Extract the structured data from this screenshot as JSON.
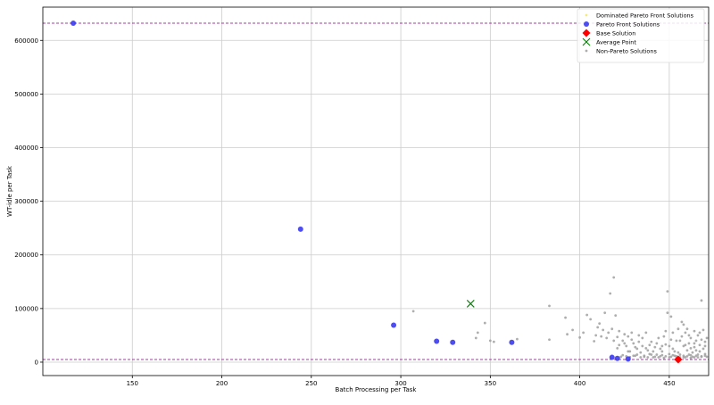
{
  "chart_data": {
    "type": "scatter",
    "title": "",
    "xlabel": "Batch Processing per Task",
    "ylabel": "WT-idle per Task",
    "xlim": [
      100,
      472
    ],
    "ylim": [
      -25000,
      662000
    ],
    "xticks": [
      150,
      200,
      250,
      300,
      350,
      400,
      450
    ],
    "yticks": [
      0,
      100000,
      200000,
      300000,
      400000,
      500000,
      600000
    ],
    "grid": true,
    "legend_position": "top-right",
    "hlines": [
      {
        "y": 632000,
        "color": "#800080",
        "style": "dashed"
      },
      {
        "y": 5000,
        "color": "#800080",
        "style": "dashed"
      }
    ],
    "series": [
      {
        "name": "Dominated Pareto Front Solutions",
        "marker": "dot",
        "color": "#f5e663",
        "points": []
      },
      {
        "name": "Pareto Front Solutions",
        "marker": "circle",
        "color": "#3a3af0",
        "points": [
          [
            117,
            632000
          ],
          [
            244,
            248000
          ],
          [
            296,
            69000
          ],
          [
            320,
            39000
          ],
          [
            329,
            37000
          ],
          [
            362,
            37000
          ],
          [
            418,
            9000
          ],
          [
            421,
            7000
          ],
          [
            427,
            6000
          ]
        ]
      },
      {
        "name": "Base Solution",
        "marker": "diamond",
        "color": "#ff0000",
        "points": [
          [
            455,
            5000
          ]
        ]
      },
      {
        "name": "Average Point",
        "marker": "x",
        "color": "#008000",
        "points": [
          [
            339,
            109000
          ]
        ]
      },
      {
        "name": "Non-Pareto Solutions",
        "marker": "dot",
        "color": "#a0a0a0",
        "points": [
          [
            307,
            95000
          ],
          [
            342,
            45000
          ],
          [
            343,
            55000
          ],
          [
            347,
            73000
          ],
          [
            350,
            40000
          ],
          [
            352,
            38000
          ],
          [
            365,
            43000
          ],
          [
            383,
            105000
          ],
          [
            383,
            42000
          ],
          [
            392,
            83000
          ],
          [
            393,
            52000
          ],
          [
            396,
            60000
          ],
          [
            400,
            46000
          ],
          [
            402,
            55000
          ],
          [
            404,
            88000
          ],
          [
            408,
            39000
          ],
          [
            410,
            65000
          ],
          [
            412,
            48000
          ],
          [
            414,
            92000
          ],
          [
            416,
            55000
          ],
          [
            417,
            128000
          ],
          [
            418,
            62000
          ],
          [
            419,
            158000
          ],
          [
            420,
            87000
          ],
          [
            421,
            47000
          ],
          [
            422,
            58000
          ],
          [
            424,
            40000
          ],
          [
            425,
            52000
          ],
          [
            426,
            30000
          ],
          [
            427,
            48000
          ],
          [
            428,
            20000
          ],
          [
            429,
            42000
          ],
          [
            430,
            35000
          ],
          [
            431,
            12000
          ],
          [
            432,
            25000
          ],
          [
            433,
            50000
          ],
          [
            434,
            18000
          ],
          [
            435,
            30000
          ],
          [
            436,
            10000
          ],
          [
            437,
            55000
          ],
          [
            438,
            22000
          ],
          [
            439,
            15000
          ],
          [
            440,
            38000
          ],
          [
            441,
            9000
          ],
          [
            442,
            28000
          ],
          [
            443,
            14000
          ],
          [
            444,
            45000
          ],
          [
            445,
            11000
          ],
          [
            446,
            20000
          ],
          [
            447,
            8000
          ],
          [
            448,
            33000
          ],
          [
            449,
            92000
          ],
          [
            449,
            132000
          ],
          [
            450,
            15000
          ],
          [
            451,
            85000
          ],
          [
            451,
            10000
          ],
          [
            452,
            55000
          ],
          [
            452,
            25000
          ],
          [
            453,
            12000
          ],
          [
            454,
            40000
          ],
          [
            454,
            8000
          ],
          [
            455,
            18000
          ],
          [
            456,
            9000
          ],
          [
            457,
            48000
          ],
          [
            457,
            75000
          ],
          [
            458,
            30000
          ],
          [
            458,
            12000
          ],
          [
            459,
            55000
          ],
          [
            459,
            9000
          ],
          [
            460,
            22000
          ],
          [
            460,
            62000
          ],
          [
            461,
            14000
          ],
          [
            461,
            35000
          ],
          [
            462,
            8000
          ],
          [
            462,
            45000
          ],
          [
            463,
            18000
          ],
          [
            463,
            10000
          ],
          [
            464,
            58000
          ],
          [
            464,
            28000
          ],
          [
            465,
            12000
          ],
          [
            465,
            40000
          ],
          [
            466,
            9000
          ],
          [
            466,
            50000
          ],
          [
            467,
            20000
          ],
          [
            467,
            32000
          ],
          [
            468,
            115000
          ],
          [
            468,
            11000
          ],
          [
            469,
            60000
          ],
          [
            469,
            25000
          ],
          [
            470,
            15000
          ],
          [
            470,
            38000
          ],
          [
            471,
            10000
          ],
          [
            471,
            45000
          ],
          [
            444,
            9000
          ],
          [
            446,
            13000
          ],
          [
            448,
            11000
          ],
          [
            450,
            9000
          ],
          [
            452,
            13000
          ],
          [
            454,
            11000
          ],
          [
            456,
            14000
          ],
          [
            458,
            9000
          ],
          [
            460,
            11000
          ],
          [
            462,
            13000
          ],
          [
            464,
            9000
          ],
          [
            466,
            14000
          ],
          [
            468,
            10000
          ],
          [
            470,
            12000
          ],
          [
            436,
            12000
          ],
          [
            438,
            9000
          ],
          [
            440,
            14000
          ],
          [
            442,
            10000
          ],
          [
            432,
            14000
          ],
          [
            434,
            9000
          ],
          [
            430,
            12000
          ],
          [
            426,
            11000
          ],
          [
            424,
            13000
          ],
          [
            423,
            10000
          ],
          [
            428,
            9500
          ],
          [
            450,
            30000
          ],
          [
            453,
            20000
          ],
          [
            456,
            40000
          ],
          [
            459,
            32000
          ],
          [
            462,
            26000
          ],
          [
            465,
            22000
          ],
          [
            468,
            42000
          ],
          [
            445,
            25000
          ],
          [
            447,
            48000
          ],
          [
            443,
            35000
          ],
          [
            441,
            20000
          ],
          [
            439,
            32000
          ],
          [
            437,
            26000
          ],
          [
            435,
            45000
          ],
          [
            433,
            38000
          ],
          [
            431,
            28000
          ],
          [
            429,
            55000
          ],
          [
            427,
            20000
          ],
          [
            425,
            35000
          ],
          [
            455,
            62000
          ],
          [
            458,
            70000
          ],
          [
            461,
            50000
          ],
          [
            464,
            35000
          ],
          [
            467,
            55000
          ],
          [
            470,
            30000
          ],
          [
            451,
            42000
          ],
          [
            448,
            58000
          ],
          [
            446,
            30000
          ],
          [
            413,
            60000
          ],
          [
            411,
            72000
          ],
          [
            415,
            45000
          ],
          [
            409,
            50000
          ],
          [
            406,
            80000
          ],
          [
            419,
            40000
          ],
          [
            422,
            32000
          ],
          [
            421,
            26000
          ]
        ]
      }
    ]
  }
}
